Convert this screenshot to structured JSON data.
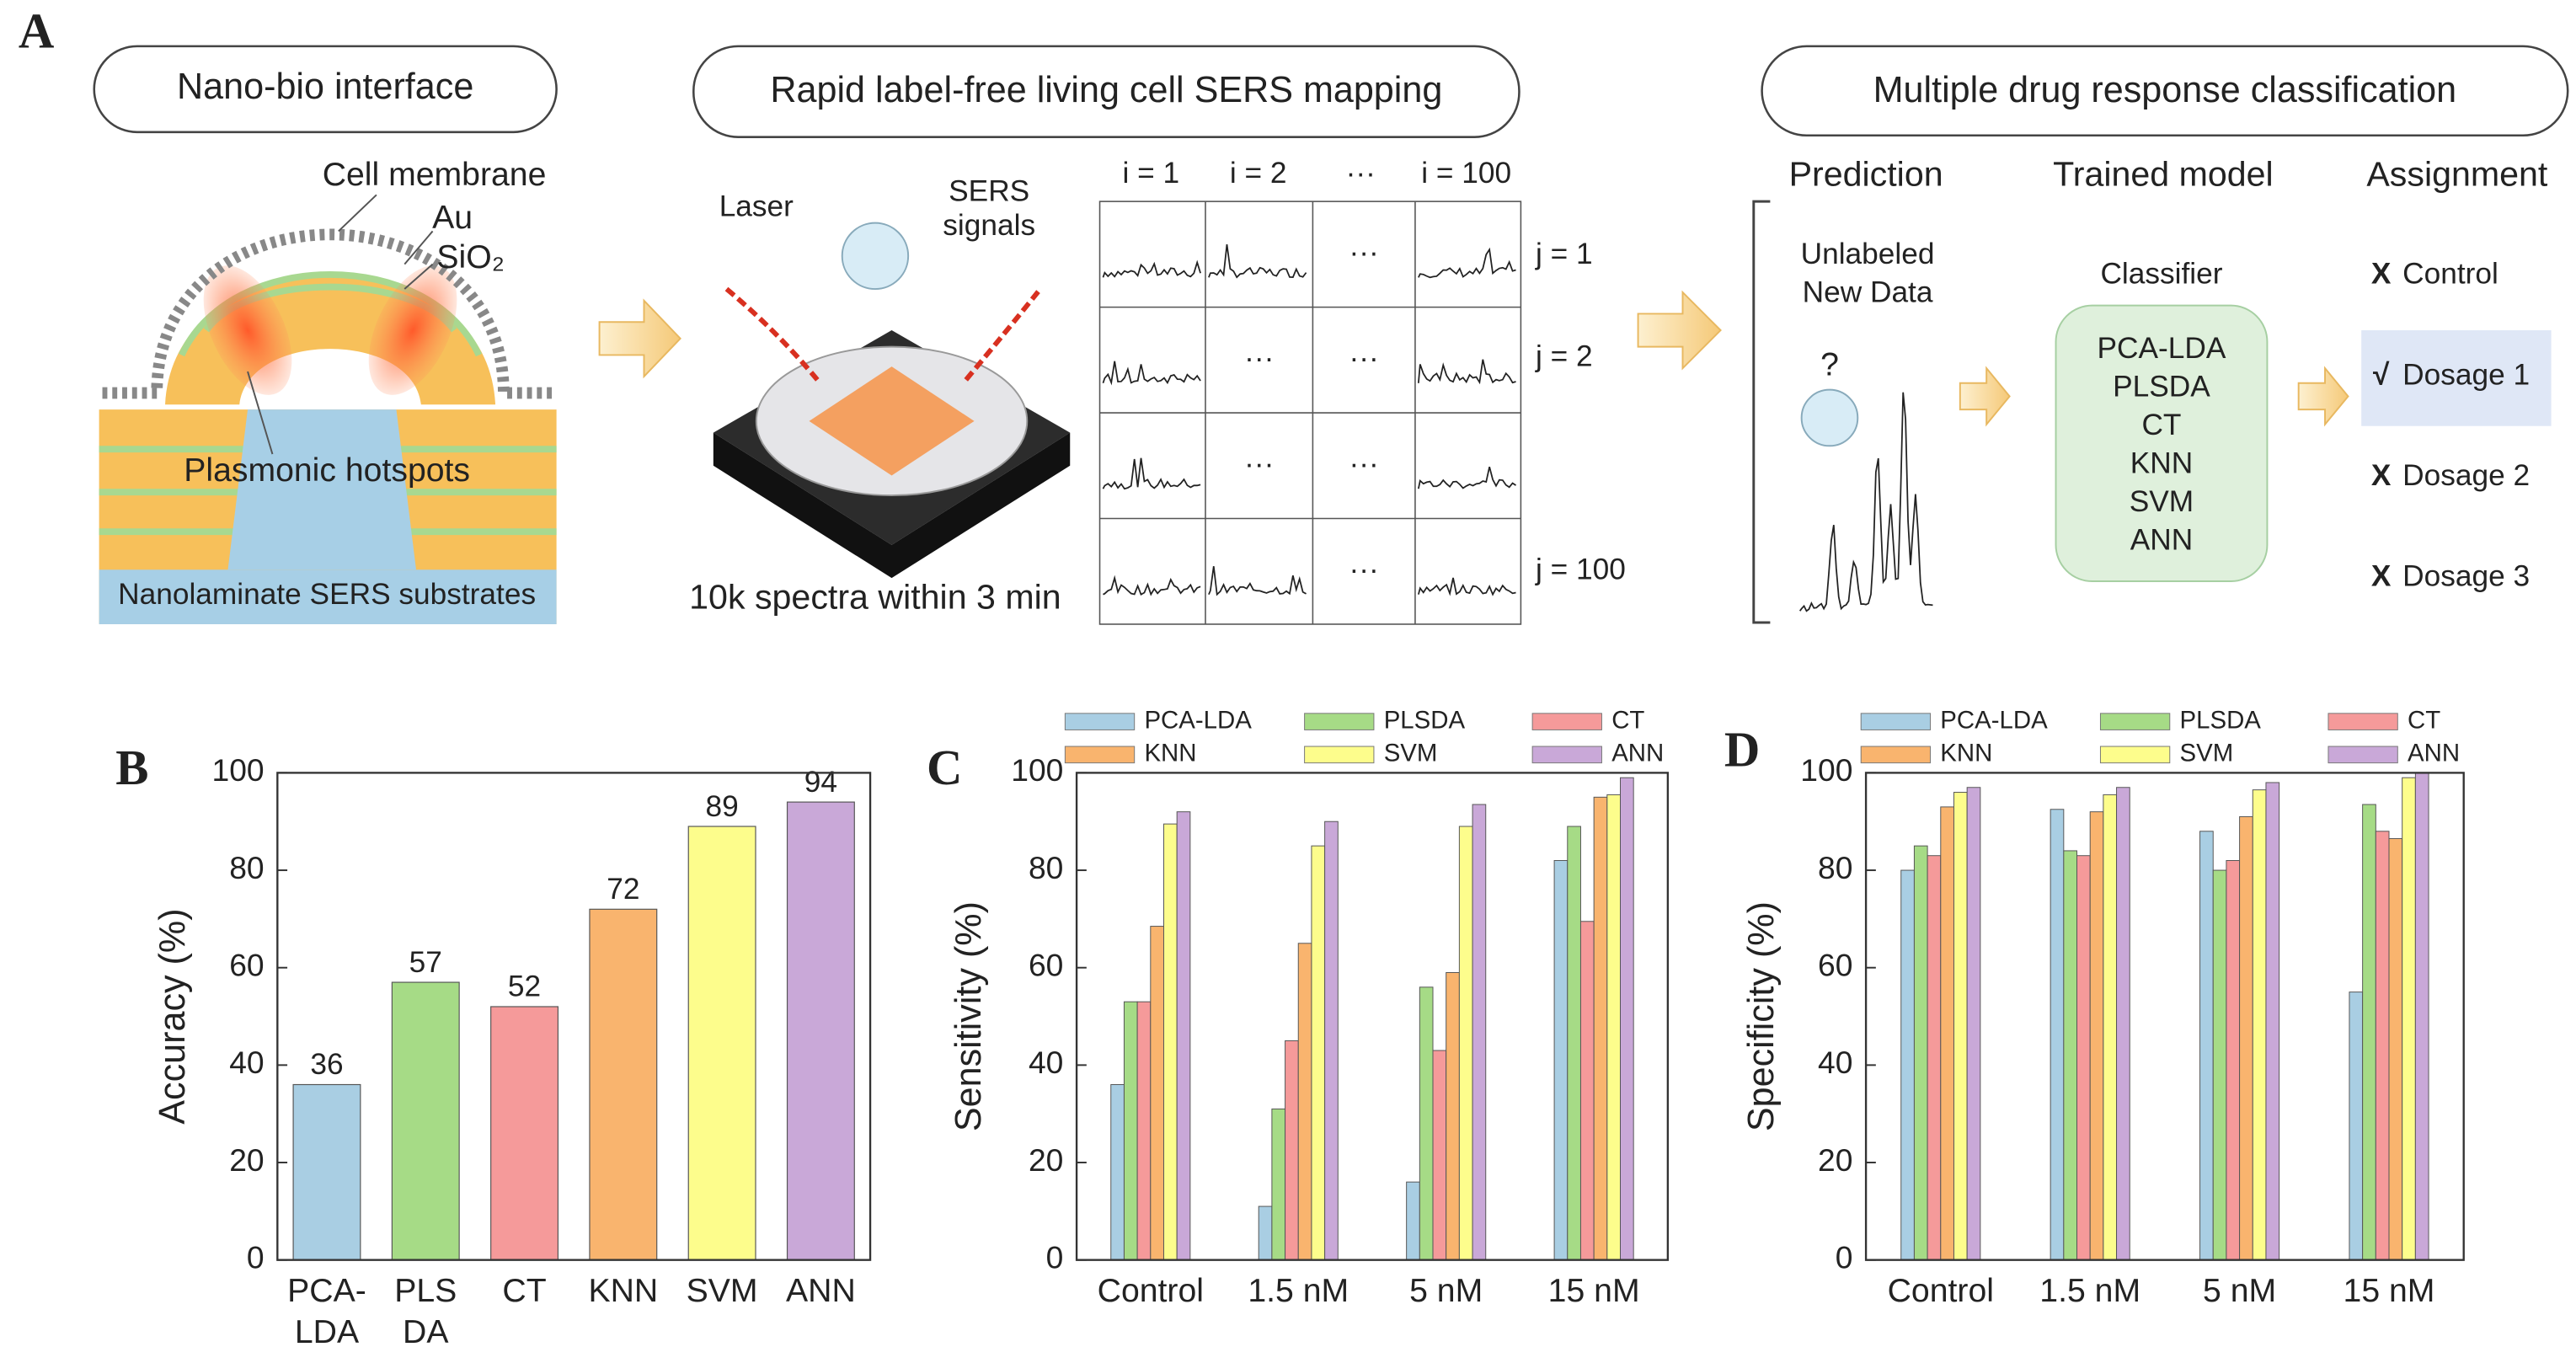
{
  "figure": {
    "panel_labels": [
      "A",
      "B",
      "C",
      "D"
    ],
    "panel_a": {
      "headers": [
        "Nano-bio interface",
        "Rapid label-free living cell SERS mapping",
        "Multiple drug response classification"
      ],
      "interface": {
        "cell_membrane": "Cell membrane",
        "au": "Au",
        "sio2": "SiO₂",
        "hotspots": "Plasmonic hotspots",
        "substrate": "Nanolaminate SERS substrates"
      },
      "mapping": {
        "laser": "Laser",
        "sers_signals": "SERS\nsignals",
        "caption": "10k spectra within 3 min",
        "columns": [
          "i = 1",
          "i = 2",
          "···",
          "i = 100"
        ],
        "rows": [
          "j = 1",
          "j = 2",
          "j = 100"
        ],
        "ellipsis": "···"
      },
      "classification": {
        "columns": [
          "Prediction",
          "Trained model",
          "Assignment"
        ],
        "unlabeled": "Unlabeled\nNew Data",
        "question": "?",
        "classifier": "Classifier",
        "models": [
          "PCA-LDA",
          "PLSDA",
          "CT",
          "KNN",
          "SVM",
          "ANN"
        ],
        "assignments": [
          {
            "mark": "X",
            "label": "Control"
          },
          {
            "mark": "√",
            "label": "Dosage 1"
          },
          {
            "mark": "X",
            "label": "Dosage 2"
          },
          {
            "mark": "X",
            "label": "Dosage 3"
          }
        ]
      }
    }
  },
  "chart_data": [
    {
      "type": "bar",
      "ylabel": "Accuracy (%)",
      "categories": [
        "PCA-\nLDA",
        "PLS\nDA",
        "CT",
        "KNN",
        "SVM",
        "ANN"
      ],
      "values": [
        36,
        57,
        52,
        72,
        89,
        94
      ],
      "colors": [
        "#a9cee3",
        "#a6db86",
        "#f59a9a",
        "#f9b46e",
        "#fdfd8c",
        "#c9a8d8"
      ],
      "ylim": [
        0,
        100
      ],
      "yticks": [
        0,
        20,
        40,
        60,
        80,
        100
      ]
    },
    {
      "type": "grouped_bar",
      "ylabel": "Sensitivity (%)",
      "categories": [
        "Control",
        "1.5 nM",
        "5 nM",
        "15 nM"
      ],
      "series": [
        {
          "name": "PCA-LDA",
          "color": "#a9cee3",
          "values": [
            36,
            11,
            16,
            82
          ]
        },
        {
          "name": "PLSDA",
          "color": "#a6db86",
          "values": [
            53,
            31,
            56,
            89
          ]
        },
        {
          "name": "CT",
          "color": "#f59a9a",
          "values": [
            53,
            45,
            43,
            69.5
          ]
        },
        {
          "name": "KNN",
          "color": "#f9b46e",
          "values": [
            68.5,
            65,
            59,
            95
          ]
        },
        {
          "name": "SVM",
          "color": "#fdfd8c",
          "values": [
            89.5,
            85,
            89,
            95.5
          ]
        },
        {
          "name": "ANN",
          "color": "#c9a8d8",
          "values": [
            92,
            90,
            93.5,
            99
          ]
        }
      ],
      "ylim": [
        0,
        100
      ],
      "yticks": [
        0,
        20,
        40,
        60,
        80,
        100
      ],
      "legend": "top"
    },
    {
      "type": "grouped_bar",
      "ylabel": "Specificity (%)",
      "categories": [
        "Control",
        "1.5 nM",
        "5 nM",
        "15 nM"
      ],
      "series": [
        {
          "name": "PCA-LDA",
          "color": "#a9cee3",
          "values": [
            80,
            92.5,
            88,
            55
          ]
        },
        {
          "name": "PLSDA",
          "color": "#a6db86",
          "values": [
            85,
            84,
            80,
            93.5
          ]
        },
        {
          "name": "CT",
          "color": "#f59a9a",
          "values": [
            83,
            83,
            82,
            88
          ]
        },
        {
          "name": "KNN",
          "color": "#f9b46e",
          "values": [
            93,
            92,
            91,
            86.5
          ]
        },
        {
          "name": "SVM",
          "color": "#fdfd8c",
          "values": [
            96,
            95.5,
            96.5,
            99
          ]
        },
        {
          "name": "ANN",
          "color": "#c9a8d8",
          "values": [
            97,
            97,
            98,
            100
          ]
        }
      ],
      "ylim": [
        0,
        100
      ],
      "yticks": [
        0,
        20,
        40,
        60,
        80,
        100
      ],
      "legend": "top"
    }
  ]
}
